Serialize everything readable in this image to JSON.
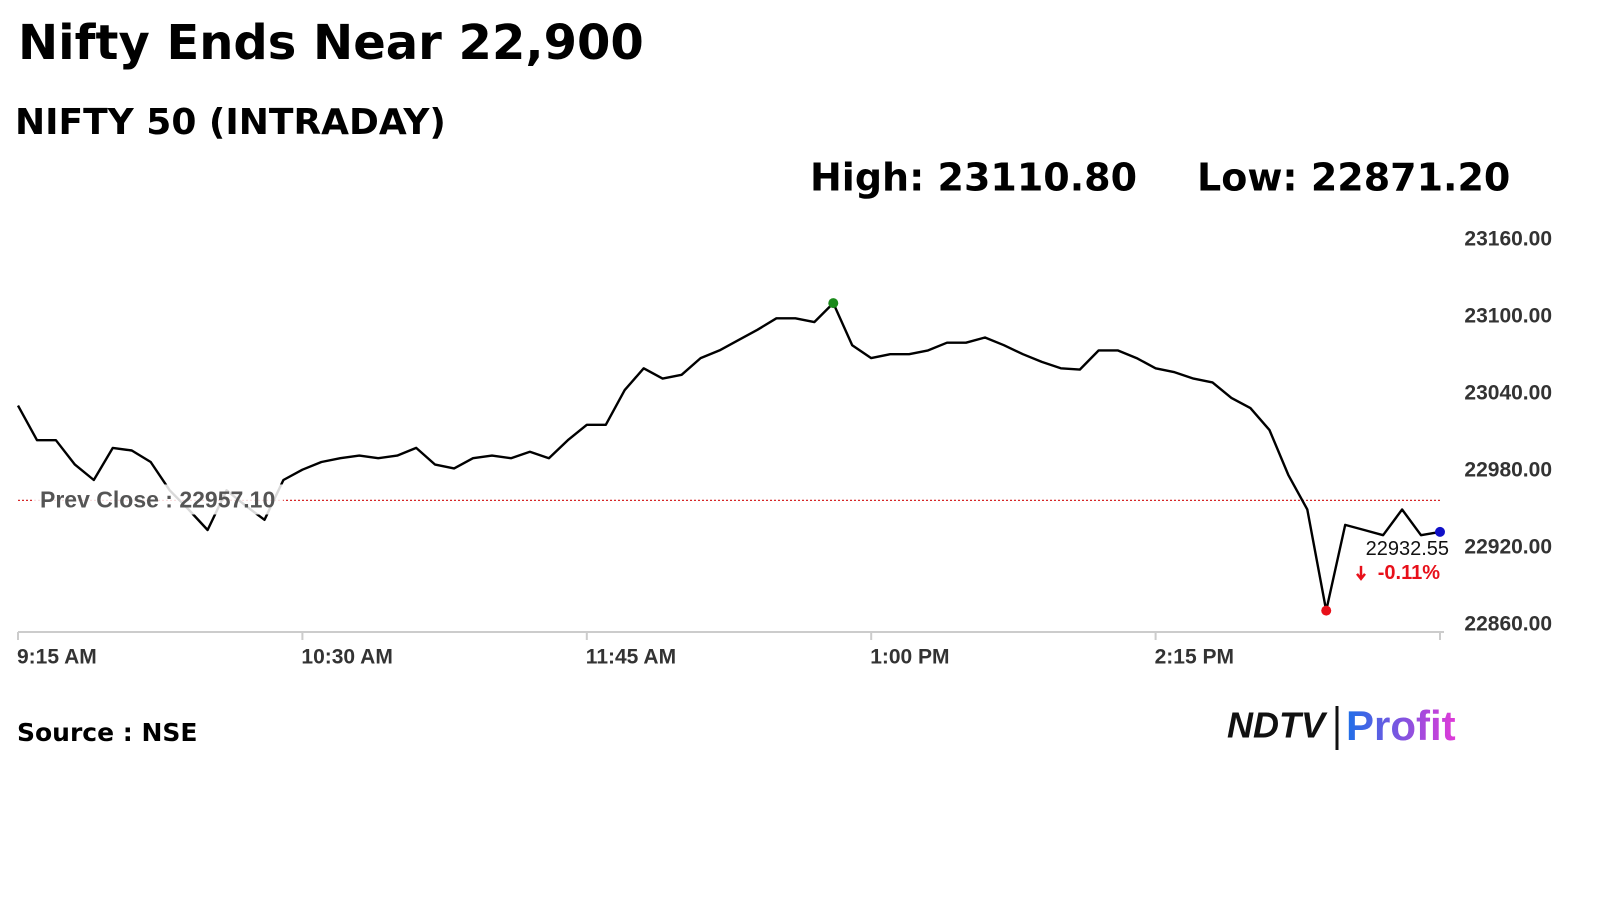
{
  "chart_data": {
    "type": "line",
    "title": "Nifty Ends Near 22,900",
    "subtitle": "NIFTY 50 (INTRADAY)",
    "high_text": "High: 23110.80",
    "low_text": "Low: 22871.20",
    "x": [
      "9:15 AM",
      "9:20 AM",
      "9:25 AM",
      "9:30 AM",
      "9:35 AM",
      "9:40 AM",
      "9:45 AM",
      "9:50 AM",
      "9:55 AM",
      "10:00 AM",
      "10:05 AM",
      "10:10 AM",
      "10:15 AM",
      "10:20 AM",
      "10:25 AM",
      "10:30 AM",
      "10:35 AM",
      "10:40 AM",
      "10:45 AM",
      "10:50 AM",
      "10:55 AM",
      "11:00 AM",
      "11:05 AM",
      "11:10 AM",
      "11:15 AM",
      "11:20 AM",
      "11:25 AM",
      "11:30 AM",
      "11:35 AM",
      "11:40 AM",
      "11:45 AM",
      "11:50 AM",
      "11:55 AM",
      "12:00 PM",
      "12:05 PM",
      "12:10 PM",
      "12:15 PM",
      "12:20 PM",
      "12:25 PM",
      "12:30 PM",
      "12:35 PM",
      "12:40 PM",
      "12:45 PM",
      "12:50 PM",
      "12:55 PM",
      "1:00 PM",
      "1:05 PM",
      "1:10 PM",
      "1:15 PM",
      "1:20 PM",
      "1:25 PM",
      "1:30 PM",
      "1:35 PM",
      "1:40 PM",
      "1:45 PM",
      "1:50 PM",
      "1:55 PM",
      "2:00 PM",
      "2:05 PM",
      "2:10 PM",
      "2:15 PM",
      "2:20 PM",
      "2:25 PM",
      "2:30 PM",
      "2:35 PM",
      "2:40 PM",
      "2:45 PM",
      "2:50 PM",
      "2:55 PM",
      "3:00 PM",
      "3:05 PM",
      "3:10 PM",
      "3:15 PM",
      "3:20 PM",
      "3:25 PM",
      "3:30 PM"
    ],
    "series": [
      {
        "name": "NIFTY 50",
        "color": "#000000",
        "values": [
          23031,
          23004,
          23004,
          22985,
          22973,
          22998,
          22996,
          22987,
          22965,
          22950,
          22934,
          22965,
          22953,
          22942,
          22973,
          22981,
          22987,
          22990,
          22992,
          22990,
          22992,
          22998,
          22985,
          22982,
          22990,
          22992,
          22990,
          22995,
          22990,
          23004,
          23016,
          23016,
          23043,
          23060,
          23052,
          23055,
          23068,
          23074,
          23082,
          23090,
          23099,
          23099,
          23096,
          23110.8,
          23078,
          23068,
          23071,
          23071,
          23074,
          23080,
          23080,
          23084,
          23078,
          23071,
          23065,
          23060,
          23059,
          23074,
          23074,
          23068,
          23060,
          23057,
          23052,
          23049,
          23037,
          23029,
          23012,
          22977,
          22950,
          22871.2,
          22938,
          22934,
          22930,
          22950,
          22930,
          22932.55
        ]
      }
    ],
    "xlim": [
      "9:15 AM",
      "3:30 PM"
    ],
    "xticks": [
      "9:15 AM",
      "10:30 AM",
      "11:45 AM",
      "1:00 PM",
      "2:15 PM"
    ],
    "ylim": [
      22860,
      23160
    ],
    "yticks": [
      {
        "value": 22860,
        "label": "22860.00"
      },
      {
        "value": 22920,
        "label": "22920.00"
      },
      {
        "value": 22980,
        "label": "22980.00"
      },
      {
        "value": 23040,
        "label": "23040.00"
      },
      {
        "value": 23100,
        "label": "23100.00"
      },
      {
        "value": 23160,
        "label": "23160.00"
      }
    ],
    "prev_close": {
      "value": 22957.1,
      "label": "Prev Close : 22957.10",
      "color": "#d62728"
    },
    "high_color": "#1a8a1a",
    "low_color": "#e8101a",
    "last_color": "#1010c8",
    "last_price": "22932.55",
    "change": "-0.11%",
    "change_color": "#e8101a",
    "source": "Source : NSE",
    "logo": {
      "left": "NDTV",
      "right": "Profit"
    }
  }
}
